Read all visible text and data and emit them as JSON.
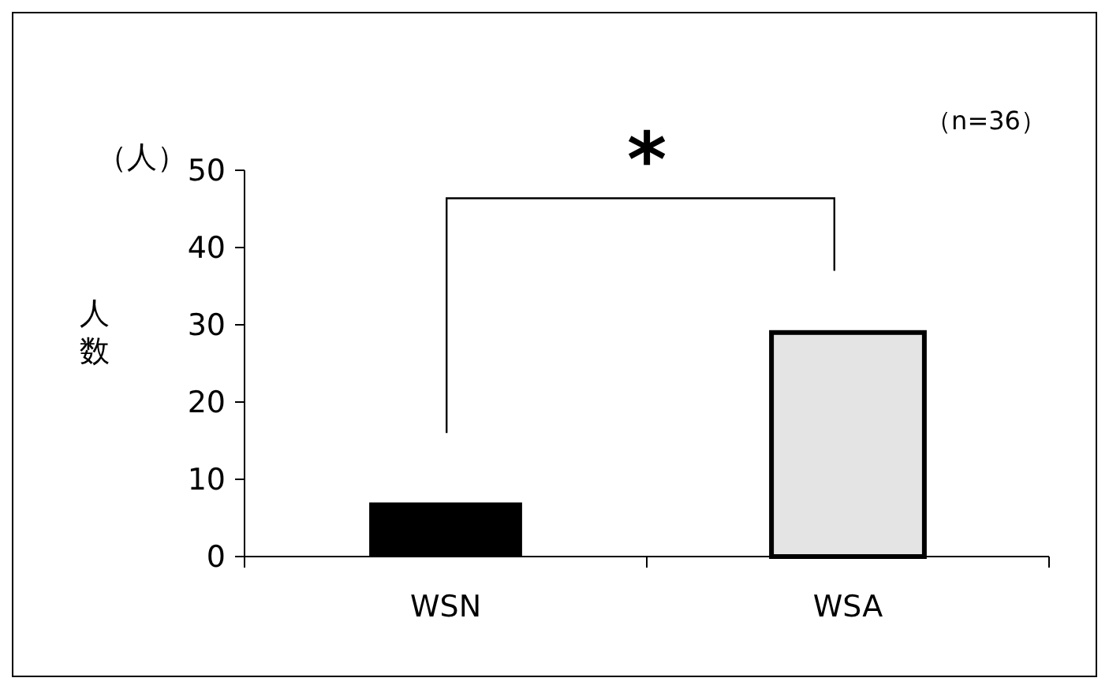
{
  "chart_data": {
    "type": "bar",
    "ylabel": "人数",
    "categories": [
      "WSN",
      "WSA"
    ],
    "values": [
      7,
      29
    ],
    "colors": [
      "#000000",
      "#e4e4e4"
    ],
    "ylim": [
      0,
      50
    ],
    "yticks": [
      0,
      10,
      20,
      30,
      40,
      50
    ],
    "grid": false,
    "annotations": [
      "（人）",
      "（n=36）",
      "*"
    ]
  }
}
